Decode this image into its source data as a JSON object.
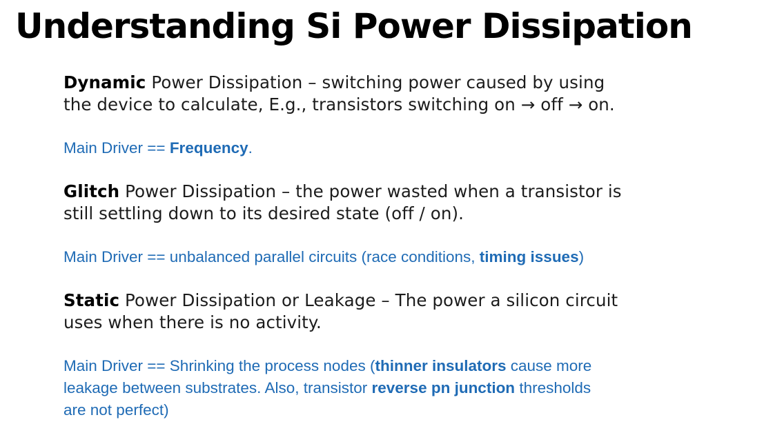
{
  "title": "Understanding Si Power Dissipation",
  "colors": {
    "text": "#1c1c1c",
    "heading": "#000000",
    "accent_blue": "#1f6bb5"
  },
  "sections": {
    "dynamic": {
      "term": "Dynamic",
      "description_line1": " Power Dissipation – switching power caused by using",
      "description_line2": "the device to calculate, E.g., transistors switching on → off → on.",
      "driver_prefix": "Main Driver == ",
      "driver_bold": "Frequency",
      "driver_suffix": "."
    },
    "glitch": {
      "term": "Glitch",
      "description_line1": " Power Dissipation – the power wasted when a transistor is",
      "description_line2": "still settling down to its desired state (off / on).",
      "driver_prefix": "Main Driver == unbalanced parallel circuits (race conditions, ",
      "driver_bold": "timing issues",
      "driver_suffix": ")"
    },
    "static": {
      "term": "Static",
      "description_line1": " Power Dissipation or Leakage – The power a silicon circuit",
      "description_line2": "uses when there is no activity.",
      "driver_line1_prefix": "Main Driver == Shrinking the process nodes (",
      "driver_line1_bold": "thinner insulators",
      "driver_line1_suffix": " cause more",
      "driver_line2_prefix": "leakage between substrates. Also, transistor ",
      "driver_line2_bold": "reverse pn junction",
      "driver_line2_suffix": " thresholds",
      "driver_line3": "are not perfect)"
    }
  }
}
